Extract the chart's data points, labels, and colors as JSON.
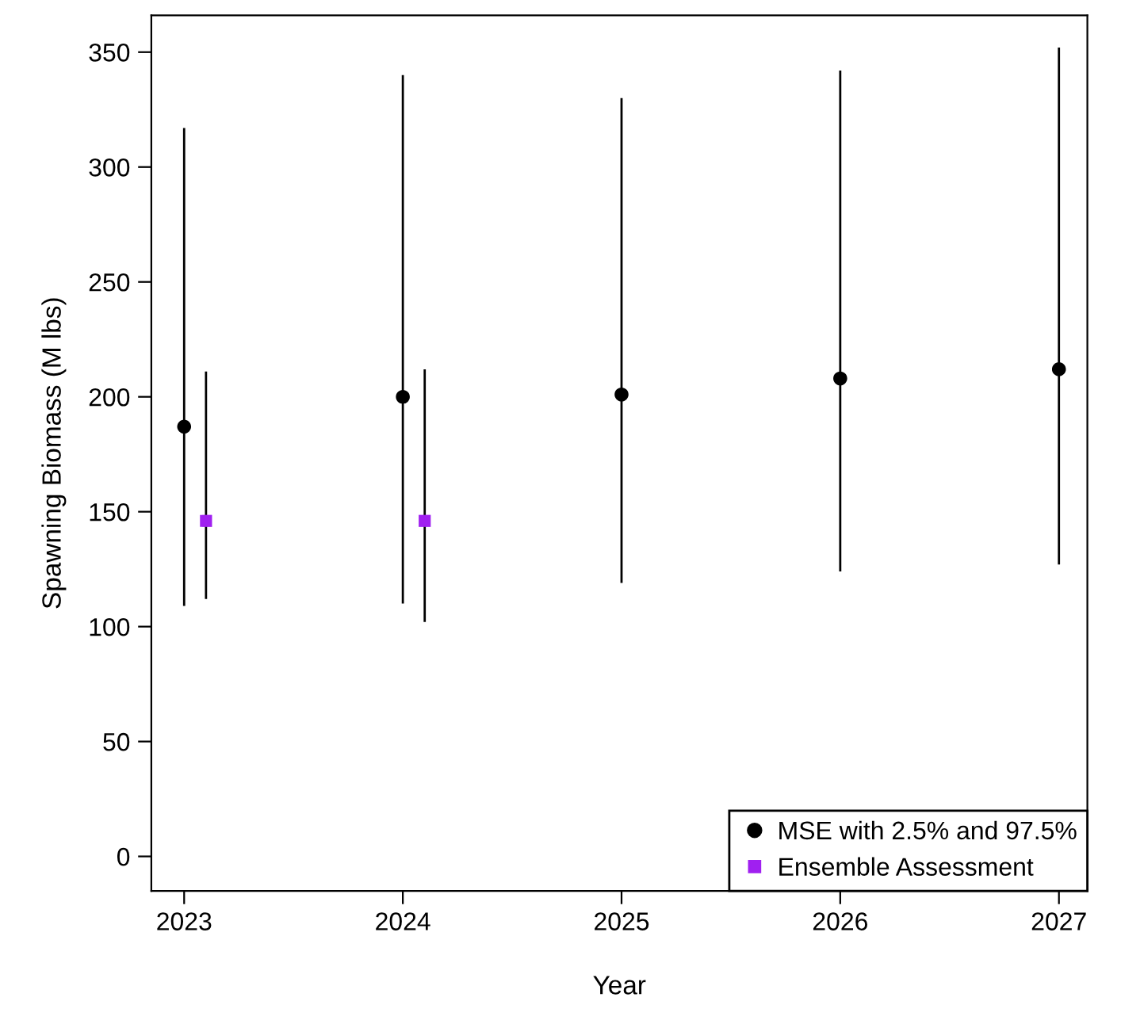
{
  "chart_data": {
    "type": "scatter",
    "xlabel": "Year",
    "ylabel": "Spawning Biomass (M lbs)",
    "xlim": [
      2022.85,
      2027.13
    ],
    "xticks": [
      2023,
      2024,
      2025,
      2026,
      2027
    ],
    "ylim": [
      -15,
      366
    ],
    "yticks": [
      0,
      50,
      100,
      150,
      200,
      250,
      300,
      350
    ],
    "grid": false,
    "legend": "bottom right",
    "series": [
      {
        "name": "MSE with 2.5% and 97.5%",
        "color": "#000000",
        "marker": "circle",
        "x": [
          2023,
          2024,
          2025,
          2026,
          2027
        ],
        "values": [
          187,
          200,
          201,
          208,
          212
        ],
        "errors": [
          [
            109,
            317
          ],
          [
            110,
            340
          ],
          [
            119,
            330
          ],
          [
            124,
            342
          ],
          [
            127,
            352
          ]
        ]
      },
      {
        "name": "Ensemble Assessment",
        "color": "#a020f0",
        "marker": "square",
        "x": [
          2023.1,
          2024.1
        ],
        "values": [
          146,
          146
        ],
        "errors": [
          [
            112,
            211
          ],
          [
            102,
            212
          ]
        ]
      }
    ]
  }
}
